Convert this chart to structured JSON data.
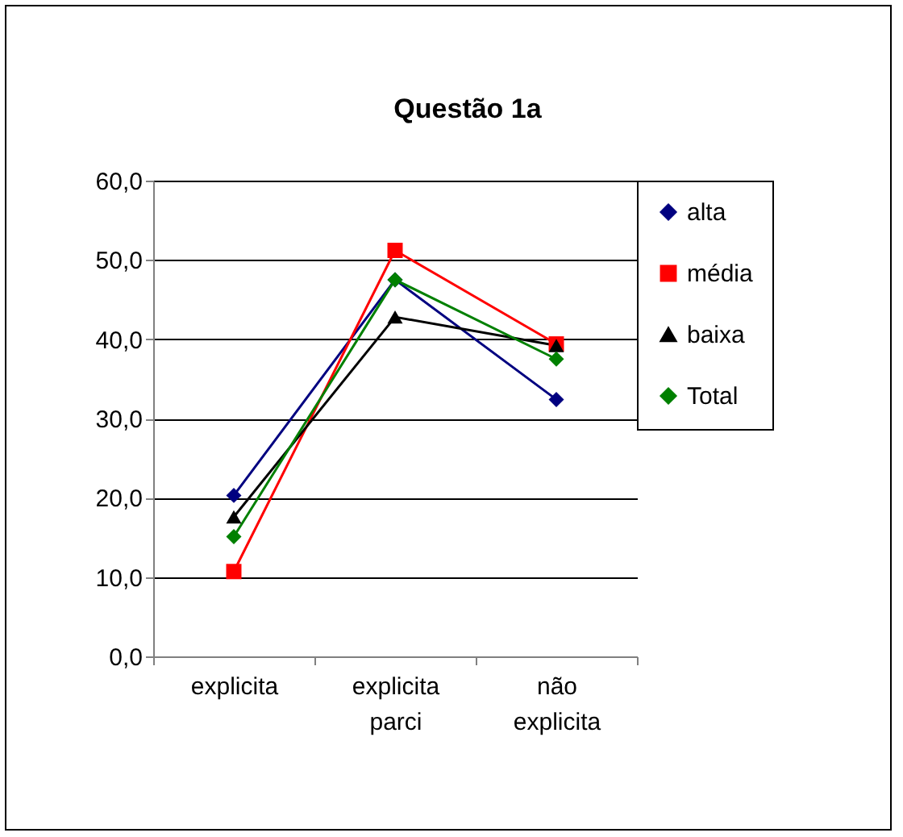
{
  "chart_data": {
    "type": "line",
    "title": "Questão 1a",
    "categories": [
      "explicita",
      "explicita parci",
      "não explicita"
    ],
    "series": [
      {
        "name": "alta",
        "color": "#000080",
        "marker": "diamond",
        "values": [
          20.3,
          47.5,
          32.4
        ]
      },
      {
        "name": "média",
        "color": "#ff0000",
        "marker": "square",
        "values": [
          10.7,
          51.2,
          39.4
        ]
      },
      {
        "name": "baixa",
        "color": "#000000",
        "marker": "triangle",
        "values": [
          17.6,
          42.8,
          39.2
        ]
      },
      {
        "name": "Total",
        "color": "#008000",
        "marker": "diamond",
        "values": [
          15.1,
          47.5,
          37.5
        ]
      }
    ],
    "ylim": [
      0,
      60
    ],
    "yticks": [
      {
        "value": 0,
        "label": "0,0"
      },
      {
        "value": 10,
        "label": "10,0"
      },
      {
        "value": 20,
        "label": "20,0"
      },
      {
        "value": 30,
        "label": "30,0"
      },
      {
        "value": 40,
        "label": "40,0"
      },
      {
        "value": 50,
        "label": "50,0"
      },
      {
        "value": 60,
        "label": "60,0"
      }
    ],
    "grid": "y",
    "legend": "right",
    "line_style": "solid"
  }
}
